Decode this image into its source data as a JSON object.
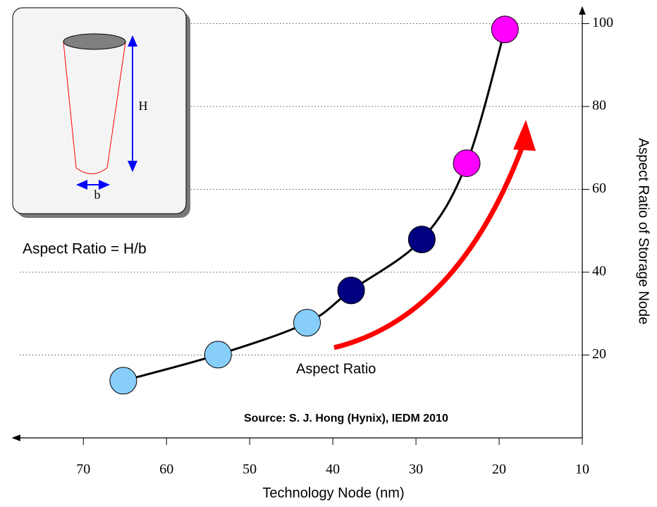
{
  "chart_data": {
    "type": "line",
    "x_label": "Technology Node (nm)",
    "y_label": "Aspect Ratio of Storage Node",
    "x": [
      65.2,
      53.8,
      43.1,
      37.8,
      29.3,
      23.9,
      19.3
    ],
    "values": [
      13.8,
      20.1,
      27.8,
      35.6,
      47.9,
      66.3,
      98.6
    ],
    "colors": [
      "#87cefa",
      "#87cefa",
      "#87cefa",
      "#000080",
      "#000080",
      "#ff00ff",
      "#ff00ff"
    ],
    "line_color": "#000000",
    "xlim": [
      78.5,
      10
    ],
    "xticks": [
      70,
      60,
      50,
      40,
      30,
      20,
      10
    ],
    "ylim": [
      0,
      104
    ],
    "yticks": [
      20,
      40,
      60,
      80,
      100
    ],
    "grid": true,
    "annotations": {
      "formula": "Aspect Ratio = H/b",
      "trend": "Aspect Ratio",
      "source": "Source: S. J. Hong (Hynix), IEDM 2010",
      "height": "H",
      "base": "b"
    }
  }
}
